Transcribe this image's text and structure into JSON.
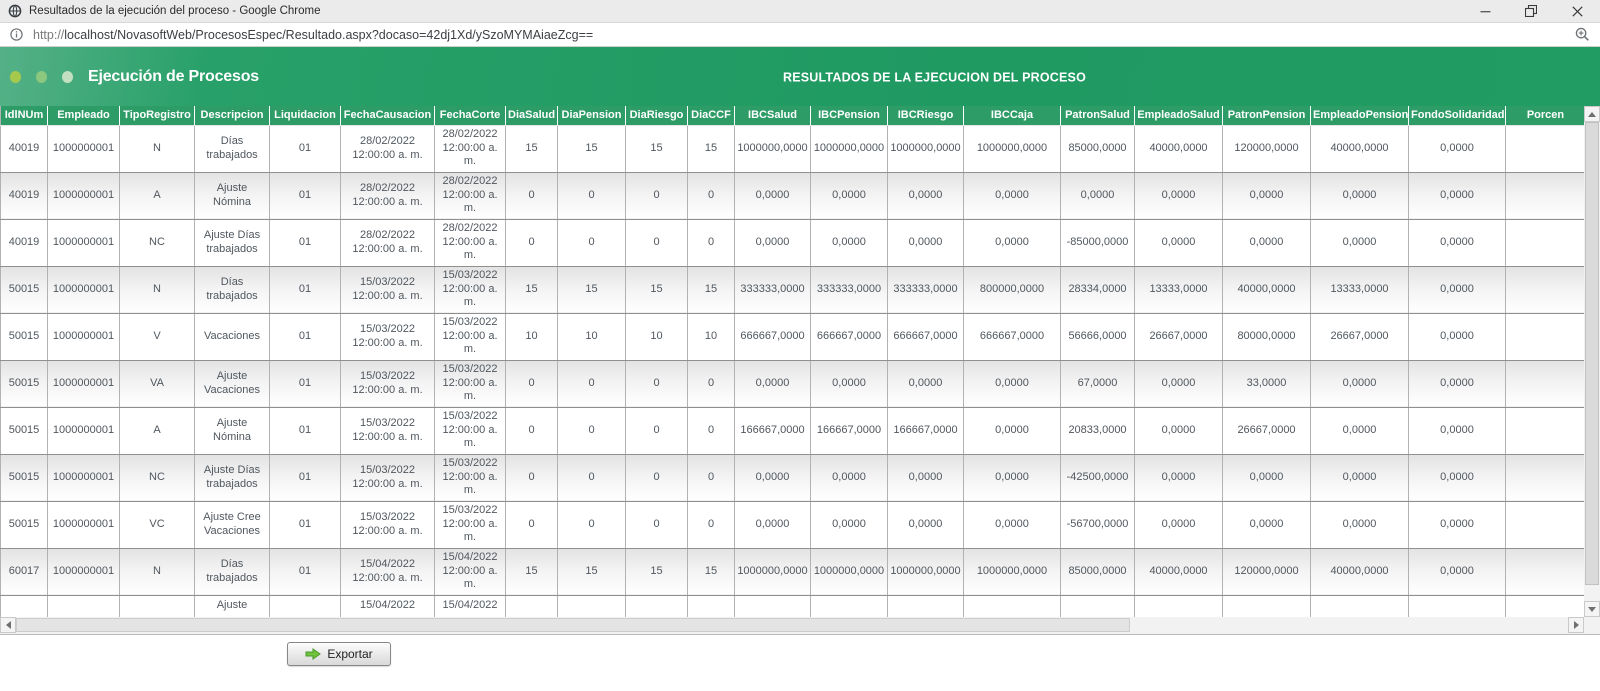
{
  "window": {
    "title": "Resultados de la ejecución del proceso - Google Chrome"
  },
  "urlbar": {
    "scheme": "http://",
    "rest": "localhost/NovasoftWeb/ProcesosEspec/Resultado.aspx?docaso=42dj1Xd/ySzoMYMAiaeZcg=="
  },
  "header": {
    "title": "Ejecución de Procesos",
    "subtitle": "RESULTADOS DE LA EJECUCION DEL PROCESO"
  },
  "table": {
    "columns": [
      "IdlNUm",
      "Empleado",
      "TipoRegistro",
      "Descripcion",
      "Liquidacion",
      "FechaCausacion",
      "FechaCorte",
      "DiaSalud",
      "DiaPension",
      "DiaRiesgo",
      "DiaCCF",
      "IBCSalud",
      "IBCPension",
      "IBCRiesgo",
      "IBCCaja",
      "PatronSalud",
      "EmpleadoSalud",
      "PatronPension",
      "EmpleadoPension",
      "FondoSolidaridad",
      "Porcen"
    ],
    "rows": [
      [
        "40019",
        "1000000001",
        "N",
        "Días trabajados",
        "01",
        "28/02/2022 12:00:00 a. m.",
        "28/02/2022 12:00:00 a. m.",
        "15",
        "15",
        "15",
        "15",
        "1000000,0000",
        "1000000,0000",
        "1000000,0000",
        "1000000,0000",
        "85000,0000",
        "40000,0000",
        "120000,0000",
        "40000,0000",
        "0,0000",
        ""
      ],
      [
        "40019",
        "1000000001",
        "A",
        "Ajuste Nómina",
        "01",
        "28/02/2022 12:00:00 a. m.",
        "28/02/2022 12:00:00 a. m.",
        "0",
        "0",
        "0",
        "0",
        "0,0000",
        "0,0000",
        "0,0000",
        "0,0000",
        "0,0000",
        "0,0000",
        "0,0000",
        "0,0000",
        "0,0000",
        ""
      ],
      [
        "40019",
        "1000000001",
        "NC",
        "Ajuste Días trabajados",
        "01",
        "28/02/2022 12:00:00 a. m.",
        "28/02/2022 12:00:00 a. m.",
        "0",
        "0",
        "0",
        "0",
        "0,0000",
        "0,0000",
        "0,0000",
        "0,0000",
        "-85000,0000",
        "0,0000",
        "0,0000",
        "0,0000",
        "0,0000",
        ""
      ],
      [
        "50015",
        "1000000001",
        "N",
        "Días trabajados",
        "01",
        "15/03/2022 12:00:00 a. m.",
        "15/03/2022 12:00:00 a. m.",
        "15",
        "15",
        "15",
        "15",
        "333333,0000",
        "333333,0000",
        "333333,0000",
        "800000,0000",
        "28334,0000",
        "13333,0000",
        "40000,0000",
        "13333,0000",
        "0,0000",
        ""
      ],
      [
        "50015",
        "1000000001",
        "V",
        "Vacaciones",
        "01",
        "15/03/2022 12:00:00 a. m.",
        "15/03/2022 12:00:00 a. m.",
        "10",
        "10",
        "10",
        "10",
        "666667,0000",
        "666667,0000",
        "666667,0000",
        "666667,0000",
        "56666,0000",
        "26667,0000",
        "80000,0000",
        "26667,0000",
        "0,0000",
        ""
      ],
      [
        "50015",
        "1000000001",
        "VA",
        "Ajuste Vacaciones",
        "01",
        "15/03/2022 12:00:00 a. m.",
        "15/03/2022 12:00:00 a. m.",
        "0",
        "0",
        "0",
        "0",
        "0,0000",
        "0,0000",
        "0,0000",
        "0,0000",
        "67,0000",
        "0,0000",
        "33,0000",
        "0,0000",
        "0,0000",
        ""
      ],
      [
        "50015",
        "1000000001",
        "A",
        "Ajuste Nómina",
        "01",
        "15/03/2022 12:00:00 a. m.",
        "15/03/2022 12:00:00 a. m.",
        "0",
        "0",
        "0",
        "0",
        "166667,0000",
        "166667,0000",
        "166667,0000",
        "0,0000",
        "20833,0000",
        "0,0000",
        "26667,0000",
        "0,0000",
        "0,0000",
        ""
      ],
      [
        "50015",
        "1000000001",
        "NC",
        "Ajuste Días trabajados",
        "01",
        "15/03/2022 12:00:00 a. m.",
        "15/03/2022 12:00:00 a. m.",
        "0",
        "0",
        "0",
        "0",
        "0,0000",
        "0,0000",
        "0,0000",
        "0,0000",
        "-42500,0000",
        "0,0000",
        "0,0000",
        "0,0000",
        "0,0000",
        ""
      ],
      [
        "50015",
        "1000000001",
        "VC",
        "Ajuste Cree Vacaciones",
        "01",
        "15/03/2022 12:00:00 a. m.",
        "15/03/2022 12:00:00 a. m.",
        "0",
        "0",
        "0",
        "0",
        "0,0000",
        "0,0000",
        "0,0000",
        "0,0000",
        "-56700,0000",
        "0,0000",
        "0,0000",
        "0,0000",
        "0,0000",
        ""
      ],
      [
        "60017",
        "1000000001",
        "N",
        "Días trabajados",
        "01",
        "15/04/2022 12:00:00 a. m.",
        "15/04/2022 12:00:00 a. m.",
        "15",
        "15",
        "15",
        "15",
        "1000000,0000",
        "1000000,0000",
        "1000000,0000",
        "1000000,0000",
        "85000,0000",
        "40000,0000",
        "120000,0000",
        "40000,0000",
        "0,0000",
        ""
      ],
      [
        "",
        "",
        "",
        "Ajuste",
        "",
        "15/04/2022",
        "15/04/2022",
        "",
        "",
        "",
        "",
        "",
        "",
        "",
        "",
        "",
        "",
        "",
        "",
        "",
        ""
      ]
    ],
    "partial_last_row": true
  },
  "export_button": {
    "label": "Exportar"
  },
  "icons": {
    "favicon": "globe",
    "url_info": "info-circle",
    "url_zoom": "magnifier-plus",
    "export_arrow": "green-right-arrow",
    "scroll_up": "▲",
    "scroll_down": "▼",
    "scroll_left": "◄",
    "scroll_right": "►"
  },
  "colors": {
    "header_green": "#1f9a61",
    "grid_header_green": "#2e9c67",
    "titlebar_gray": "#ebebeb",
    "row_alt_gray": "#e3e3e3",
    "cell_text": "#50575e",
    "export_arrow_green": "#72c13f"
  }
}
